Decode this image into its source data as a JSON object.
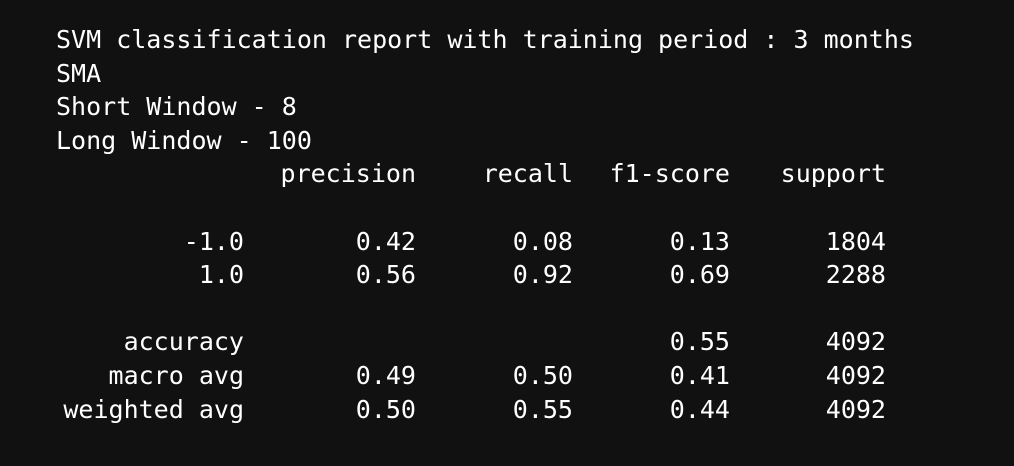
{
  "header": {
    "title": "SVM classification report with training period : 3 months",
    "indicator": "SMA",
    "short_window": "Short Window - 8",
    "long_window": "Long Window - 100"
  },
  "report": {
    "columns": [
      "precision",
      "recall",
      "f1-score",
      "support"
    ],
    "class_rows": [
      {
        "label": "-1.0",
        "precision": "0.42",
        "recall": "0.08",
        "f1": "0.13",
        "support": "1804"
      },
      {
        "label": "1.0",
        "precision": "0.56",
        "recall": "0.92",
        "f1": "0.69",
        "support": "2288"
      }
    ],
    "summary_rows": [
      {
        "label": "accuracy",
        "precision": "",
        "recall": "",
        "f1": "0.55",
        "support": "4092"
      },
      {
        "label": "macro avg",
        "precision": "0.49",
        "recall": "0.50",
        "f1": "0.41",
        "support": "4092"
      },
      {
        "label": "weighted avg",
        "precision": "0.50",
        "recall": "0.55",
        "f1": "0.44",
        "support": "4092"
      }
    ]
  }
}
